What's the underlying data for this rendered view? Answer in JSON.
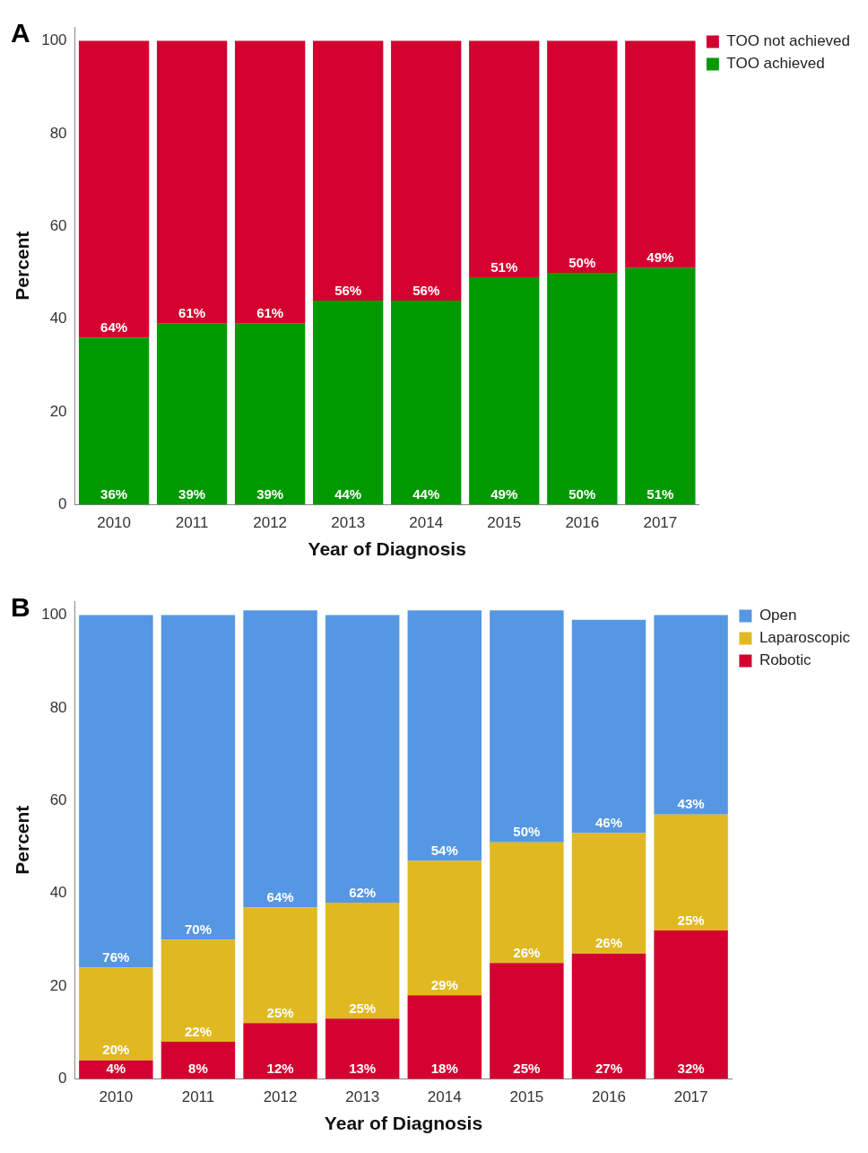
{
  "chart_data": [
    {
      "type": "bar",
      "title": "A",
      "stacked": true,
      "categories": [
        "2010",
        "2011",
        "2012",
        "2013",
        "2014",
        "2015",
        "2016",
        "2017"
      ],
      "xlabel": "Year of Diagnosis",
      "ylabel": "Percent",
      "ylim": [
        0,
        103
      ],
      "yticks": [
        0,
        20,
        40,
        60,
        80,
        100
      ],
      "grid": false,
      "legend": "top right",
      "series": [
        {
          "name": "TOO achieved",
          "color": "#009a00",
          "values": [
            36,
            39,
            39,
            44,
            44,
            49,
            50,
            51
          ],
          "value_labels": [
            "36%",
            "39%",
            "39%",
            "44%",
            "44%",
            "49%",
            "50%",
            "51%"
          ]
        },
        {
          "name": "TOO not achieved",
          "color": "#d40030",
          "values": [
            64,
            61,
            61,
            56,
            56,
            51,
            50,
            49
          ],
          "value_labels": [
            "64%",
            "61%",
            "61%",
            "56%",
            "56%",
            "51%",
            "50%",
            "49%"
          ]
        }
      ]
    },
    {
      "type": "bar",
      "title": "B",
      "stacked": true,
      "categories": [
        "2010",
        "2011",
        "2012",
        "2013",
        "2014",
        "2015",
        "2016",
        "2017"
      ],
      "xlabel": "Year of Diagnosis",
      "ylabel": "Percent",
      "ylim": [
        0,
        103
      ],
      "yticks": [
        0,
        20,
        40,
        60,
        80,
        100
      ],
      "grid": false,
      "legend": "top right",
      "series": [
        {
          "name": "Robotic",
          "color": "#d40030",
          "values": [
            4,
            8,
            12,
            13,
            18,
            25,
            27,
            32
          ],
          "value_labels": [
            "4%",
            "8%",
            "12%",
            "13%",
            "18%",
            "25%",
            "27%",
            "32%"
          ]
        },
        {
          "name": "Laparoscopic",
          "color": "#e0b822",
          "values": [
            20,
            22,
            25,
            25,
            29,
            26,
            26,
            25
          ],
          "value_labels": [
            "20%",
            "22%",
            "25%",
            "25%",
            "29%",
            "26%",
            "26%",
            "25%"
          ]
        },
        {
          "name": "Open",
          "color": "#5597e3",
          "values": [
            76,
            70,
            64,
            62,
            54,
            50,
            46,
            43
          ],
          "value_labels": [
            "76%",
            "70%",
            "64%",
            "62%",
            "54%",
            "50%",
            "46%",
            "43%"
          ]
        }
      ]
    }
  ]
}
